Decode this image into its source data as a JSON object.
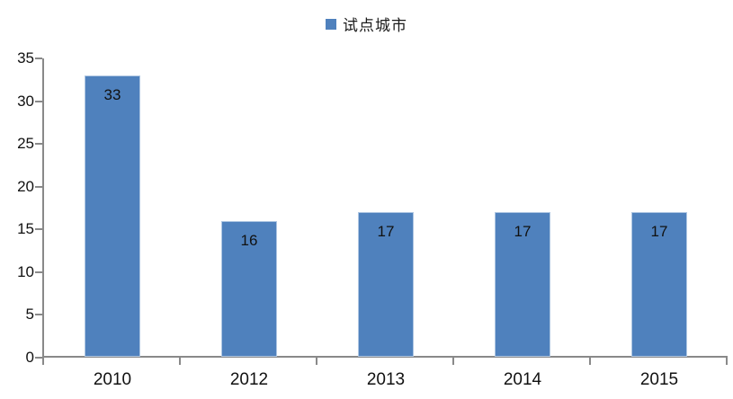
{
  "chart_data": {
    "type": "bar",
    "title": "",
    "xlabel": "",
    "ylabel": "",
    "categories": [
      "2010",
      "2012",
      "2013",
      "2014",
      "2015"
    ],
    "values": [
      33,
      16,
      17,
      17,
      17
    ],
    "value_labels": [
      "33",
      "16",
      "17",
      "17",
      "17"
    ],
    "y_ticks": [
      0,
      5,
      10,
      15,
      20,
      25,
      30,
      35
    ],
    "ylim": [
      0,
      35
    ],
    "grid": false,
    "legend_position": "top-center",
    "legend_entries": [
      "试点城市"
    ],
    "bar_value_labels_inside": true
  },
  "legend": {
    "label": "试点城市"
  },
  "colors": {
    "bar_fill": "#4F81BD",
    "bar_border": "#aec6e2",
    "axis": "#898989",
    "text": "#111111",
    "background": "#ffffff"
  }
}
